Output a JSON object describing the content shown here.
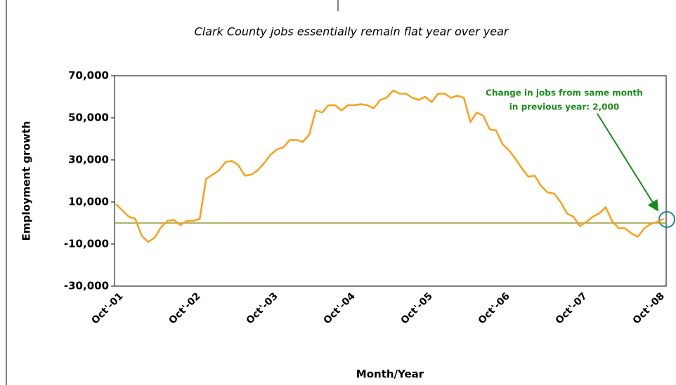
{
  "chart_data": {
    "type": "line",
    "title": "Clark County jobs essentially remain flat year over year",
    "x_label": "Month/Year",
    "y_label": "Employment growth",
    "annotation": [
      "Change in jobs from same month",
      "in previous year: 2,000"
    ],
    "categories": [
      "Oct'-01",
      null,
      null,
      null,
      null,
      null,
      null,
      null,
      null,
      null,
      null,
      null,
      "Oct'-02",
      null,
      null,
      null,
      null,
      null,
      null,
      null,
      null,
      null,
      null,
      null,
      "Oct'-03",
      null,
      null,
      null,
      null,
      null,
      null,
      null,
      null,
      null,
      null,
      null,
      "Oct'-04",
      null,
      null,
      null,
      null,
      null,
      null,
      null,
      null,
      null,
      null,
      null,
      "Oct'-05",
      null,
      null,
      null,
      null,
      null,
      null,
      null,
      null,
      null,
      null,
      null,
      "Oct'-06",
      null,
      null,
      null,
      null,
      null,
      null,
      null,
      null,
      null,
      null,
      null,
      "Oct'-07",
      null,
      null,
      null,
      null,
      null,
      null,
      null,
      null,
      null,
      null,
      null,
      "Oct'-08",
      null
    ],
    "series": [
      {
        "name": "Employment growth",
        "color": "#f7a21b",
        "values": [
          9000,
          6000,
          3000,
          2000,
          -6000,
          -9000,
          -7000,
          -2000,
          1000,
          1500,
          -1000,
          1000,
          1000,
          2000,
          21000,
          23000,
          25000,
          29000,
          29500,
          27500,
          22500,
          23000,
          25000,
          28500,
          32500,
          35000,
          36000,
          39500,
          39500,
          38500,
          42000,
          53500,
          52500,
          56000,
          56000,
          53500,
          56000,
          56000,
          56500,
          56000,
          54500,
          58500,
          59500,
          63000,
          61500,
          61500,
          59500,
          58500,
          60000,
          57500,
          61500,
          61500,
          59500,
          60500,
          59500,
          48000,
          52500,
          51000,
          44500,
          44000,
          37500,
          34500,
          30500,
          26000,
          22000,
          22500,
          17500,
          14500,
          14000,
          10000,
          4500,
          3000,
          -1500,
          500,
          3000,
          4500,
          7500,
          1000,
          -2500,
          -2500,
          -5000,
          -6500,
          -2500,
          -500,
          500,
          2000
        ]
      }
    ],
    "reference_line": {
      "value": 0,
      "color": "#999933"
    },
    "ylim": [
      -30000,
      70000
    ],
    "yticks": [
      {
        "value": -30000,
        "label": "-30,000"
      },
      {
        "value": -10000,
        "label": "-10,000"
      },
      {
        "value": 10000,
        "label": "10,000"
      },
      {
        "value": 30000,
        "label": "30,000"
      },
      {
        "value": 50000,
        "label": "50,000"
      },
      {
        "value": 70000,
        "label": "70,000"
      }
    ],
    "grid": false
  }
}
